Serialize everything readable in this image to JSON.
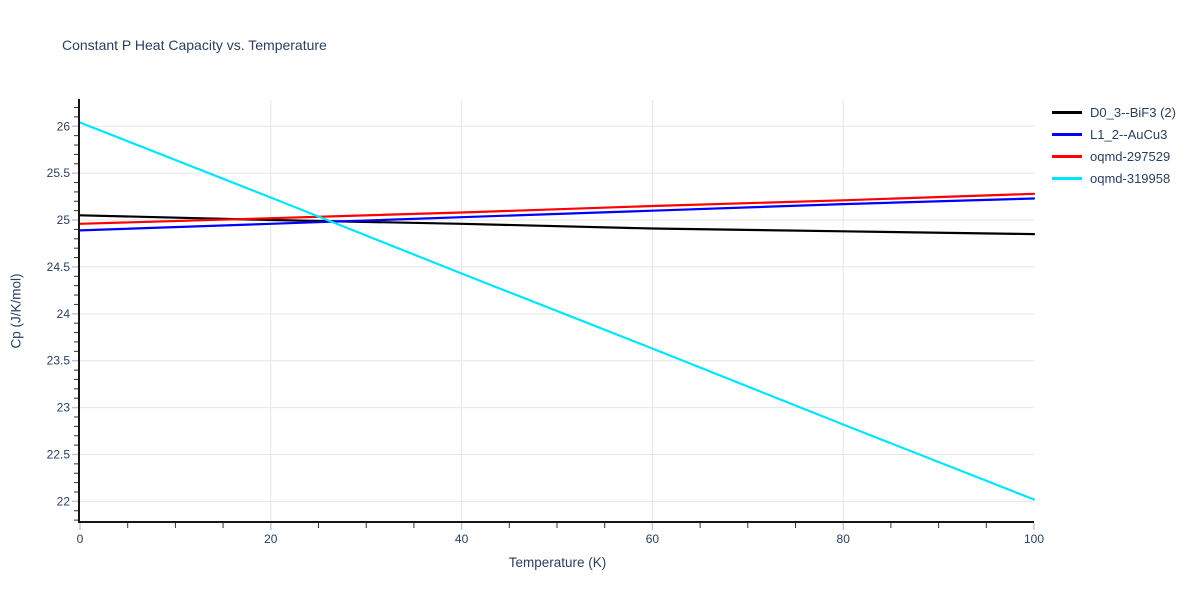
{
  "chart_data": {
    "type": "line",
    "title": "Constant P Heat Capacity vs. Temperature",
    "xlabel": "Temperature (K)",
    "ylabel": "Cp (J/K/mol)",
    "xlim": [
      0,
      100
    ],
    "ylim": [
      21.78,
      26.28
    ],
    "x_major_ticks": [
      0,
      20,
      40,
      60,
      80,
      100
    ],
    "x_minor_step": 5,
    "y_major_ticks": [
      22,
      22.5,
      23,
      23.5,
      24,
      24.5,
      25,
      25.5,
      26
    ],
    "y_minor_step": 0.1,
    "grid": true,
    "legend_position": "top-right",
    "x": [
      0,
      20,
      40,
      60,
      80,
      100
    ],
    "series": [
      {
        "name": "D0_3--BiF3 (2)",
        "color": "#000000",
        "values": [
          25.05,
          25.0,
          24.96,
          24.91,
          24.88,
          24.85
        ]
      },
      {
        "name": "L1_2--AuCu3",
        "color": "#0000ff",
        "values": [
          24.89,
          24.96,
          25.03,
          25.1,
          25.17,
          25.23
        ]
      },
      {
        "name": "oqmd-297529",
        "color": "#ff0000",
        "values": [
          24.96,
          25.02,
          25.08,
          25.15,
          25.21,
          25.28
        ]
      },
      {
        "name": "oqmd-319958",
        "color": "#00e5ff",
        "values": [
          26.04,
          25.24,
          24.43,
          23.63,
          22.82,
          22.02
        ]
      }
    ]
  },
  "colors": {
    "text": "#2a3f5f",
    "grid": "#e6e6e6",
    "axis": "#161616",
    "major_tick": "#c2c7cf",
    "minor_tick": "#333333",
    "background": "#ffffff"
  }
}
